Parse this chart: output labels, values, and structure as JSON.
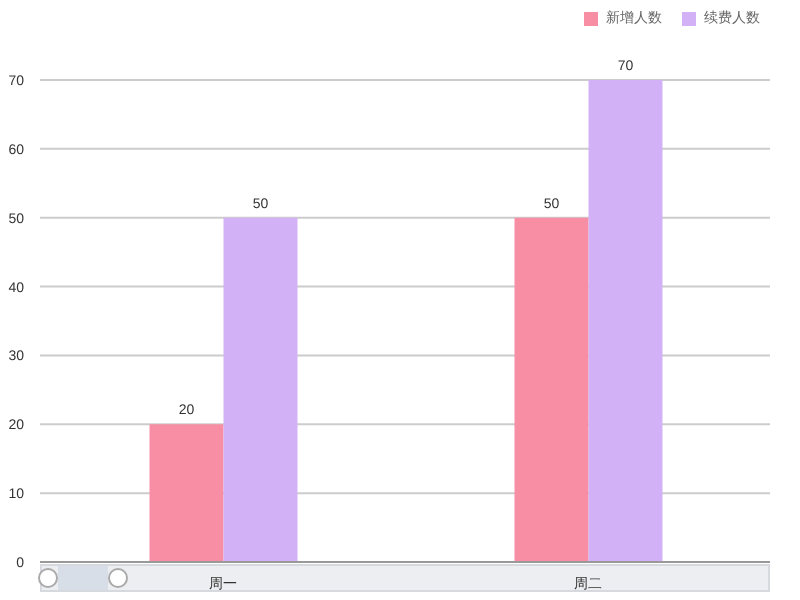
{
  "chart_data": {
    "type": "bar",
    "categories": [
      "周一",
      "周二"
    ],
    "series": [
      {
        "name": "新增人数",
        "color": "#f78ea4",
        "values": [
          20,
          50
        ]
      },
      {
        "name": "续费人数",
        "color": "#d2b1f6",
        "values": [
          50,
          70
        ]
      }
    ],
    "ylim": [
      0,
      70
    ],
    "yticks": [
      0,
      10,
      20,
      30,
      40,
      50,
      60,
      70
    ],
    "grid": "y",
    "legend": "top right",
    "data_labels": true
  }
}
